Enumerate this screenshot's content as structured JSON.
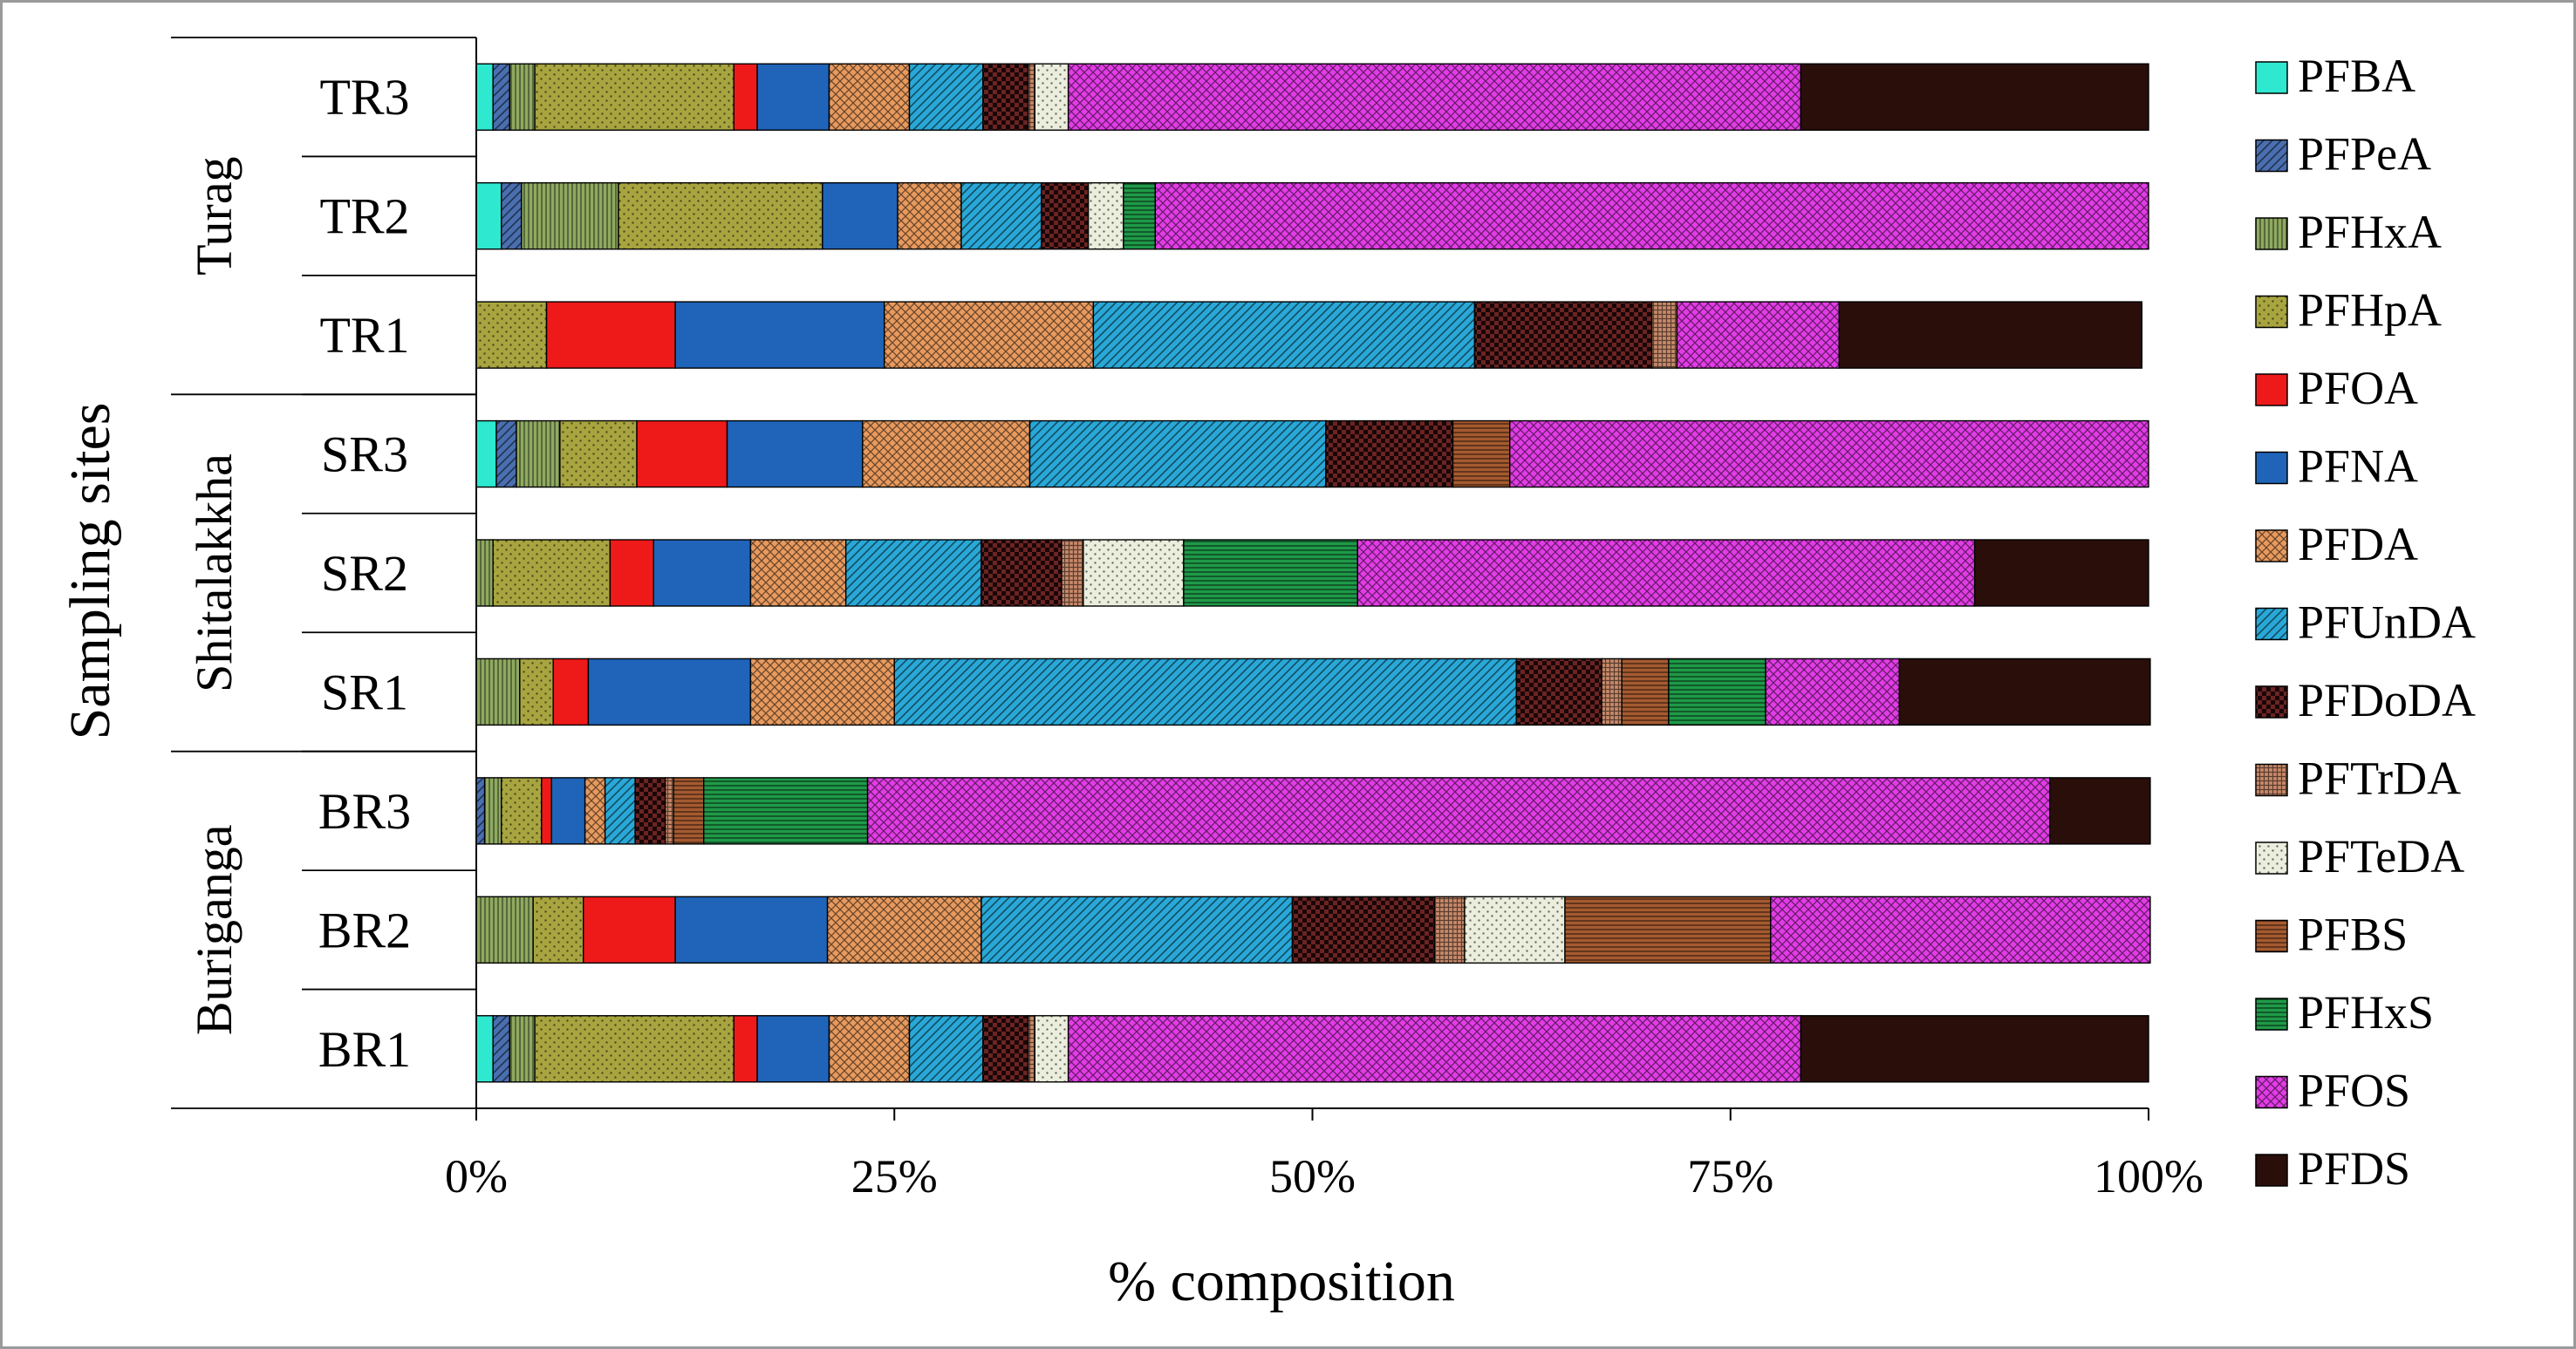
{
  "chart_data": {
    "type": "bar",
    "orientation": "horizontal",
    "stacked": "percent",
    "title": "",
    "xlabel": "% composition",
    "ylabel": "Sampling sites",
    "xlim": [
      0,
      100
    ],
    "x_ticks": [
      "0%",
      "25%",
      "50%",
      "75%",
      "100%"
    ],
    "grid": false,
    "legend_position": "right",
    "groups": [
      {
        "name": "Turag",
        "categories": [
          "TR3",
          "TR2",
          "TR1"
        ]
      },
      {
        "name": "Shitalakkha",
        "categories": [
          "SR3",
          "SR2",
          "SR1"
        ]
      },
      {
        "name": "Buriganga",
        "categories": [
          "BR3",
          "BR2",
          "BR1"
        ]
      }
    ],
    "categories": [
      "TR3",
      "TR2",
      "TR1",
      "SR3",
      "SR2",
      "SR1",
      "BR3",
      "BR2",
      "BR1"
    ],
    "series": [
      {
        "name": "PFBA",
        "color": "#2ee8d0",
        "pattern": "solid",
        "values": [
          1.0,
          1.5,
          0.0,
          1.2,
          0.0,
          0.0,
          0.0,
          0.0,
          1.0
        ]
      },
      {
        "name": "PFPeA",
        "color": "#4a6fb0",
        "pattern": "diagonal",
        "values": [
          1.0,
          1.2,
          0.0,
          1.2,
          0.0,
          0.0,
          0.5,
          0.0,
          1.0
        ]
      },
      {
        "name": "PFHxA",
        "color": "#8faa60",
        "pattern": "vertical",
        "values": [
          1.5,
          5.8,
          0.0,
          2.6,
          1.0,
          2.6,
          1.0,
          3.4,
          1.5
        ]
      },
      {
        "name": "PFHpA",
        "color": "#a8a540",
        "pattern": "dots",
        "values": [
          11.9,
          12.2,
          4.2,
          4.6,
          7.0,
          2.0,
          2.4,
          3.0,
          11.9
        ]
      },
      {
        "name": "PFOA",
        "color": "#ee1a1a",
        "pattern": "solid",
        "values": [
          1.4,
          0.0,
          7.7,
          5.4,
          2.6,
          2.1,
          0.6,
          5.5,
          1.4
        ]
      },
      {
        "name": "PFNA",
        "color": "#1f64b8",
        "pattern": "solid",
        "values": [
          4.3,
          4.5,
          12.5,
          8.1,
          5.8,
          9.7,
          2.0,
          9.1,
          4.3
        ]
      },
      {
        "name": "PFDA",
        "color": "#e89a5e",
        "pattern": "crosshatch",
        "values": [
          4.8,
          3.8,
          12.5,
          10.0,
          5.7,
          8.6,
          1.2,
          9.2,
          4.8
        ]
      },
      {
        "name": "PFUnDA",
        "color": "#29a8d8",
        "pattern": "diagonal",
        "values": [
          4.4,
          4.8,
          22.8,
          17.7,
          8.1,
          37.2,
          1.8,
          18.6,
          4.4
        ]
      },
      {
        "name": "PFDoDA",
        "color": "#6b2424",
        "pattern": "checker",
        "values": [
          2.7,
          2.8,
          10.6,
          7.6,
          4.8,
          5.1,
          1.8,
          8.5,
          2.7
        ]
      },
      {
        "name": "PFTrDA",
        "color": "#c98a6a",
        "pattern": "grid",
        "values": [
          0.4,
          0.0,
          1.5,
          0.0,
          1.3,
          1.2,
          0.5,
          1.8,
          0.4
        ]
      },
      {
        "name": "PFTeDA",
        "color": "#ebeedc",
        "pattern": "dots",
        "values": [
          2.0,
          2.1,
          0.0,
          0.0,
          6.0,
          0.0,
          0.0,
          6.0,
          2.0
        ]
      },
      {
        "name": "PFBS",
        "color": "#a65a30",
        "pattern": "horizontal",
        "values": [
          0.0,
          0.0,
          0.0,
          3.4,
          0.0,
          2.8,
          1.8,
          12.3,
          0.0
        ]
      },
      {
        "name": "PFHxS",
        "color": "#1e9a48",
        "pattern": "horizontal",
        "values": [
          0.0,
          1.9,
          0.0,
          0.0,
          10.4,
          5.8,
          9.8,
          0.0,
          0.0
        ]
      },
      {
        "name": "PFOS",
        "color": "#e23ce6",
        "pattern": "crosshatch",
        "values": [
          43.8,
          59.4,
          9.7,
          38.2,
          36.9,
          8.0,
          70.7,
          22.7,
          43.8
        ]
      },
      {
        "name": "PFDS",
        "color": "#2a0e0a",
        "pattern": "solid",
        "values": [
          20.8,
          0.0,
          18.1,
          0.0,
          10.4,
          15.0,
          6.0,
          0.0,
          20.8
        ]
      }
    ]
  }
}
